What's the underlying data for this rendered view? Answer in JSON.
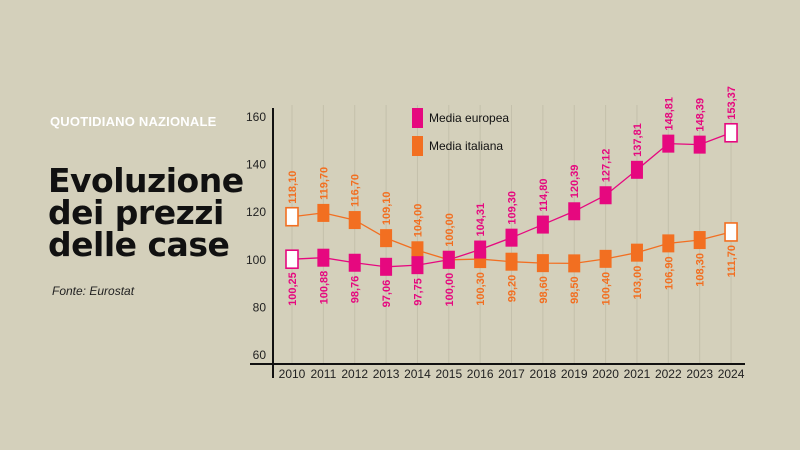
{
  "header": {
    "brand": "QUOTIDIANO NAZIONALE",
    "title_lines": [
      "Evoluzione",
      "dei prezzi",
      "delle case"
    ],
    "source": "Fonte:  Eurostat"
  },
  "colors": {
    "background": "#d4d0bb",
    "europe": "#e6087f",
    "italy": "#f26f21",
    "axis": "#111111",
    "gridline": "#c4c0ab"
  },
  "legend": [
    {
      "label": "Media europea",
      "color": "#e6087f"
    },
    {
      "label": "Media italiana",
      "color": "#f26f21"
    }
  ],
  "chart_data": {
    "type": "line",
    "title": "Evoluzione dei prezzi delle case",
    "source": "Eurostat",
    "xlabel": "",
    "ylabel": "",
    "ylim": [
      60,
      160
    ],
    "yticks": [
      60,
      80,
      100,
      120,
      140,
      160
    ],
    "grid": "vertical",
    "legend_position": "top-inside",
    "categories": [
      "2010",
      "2011",
      "2012",
      "2013",
      "2014",
      "2015",
      "2016",
      "2017",
      "2018",
      "2019",
      "2020",
      "2021",
      "2022",
      "2023",
      "2024"
    ],
    "series": [
      {
        "name": "Media europea",
        "color": "#e6087f",
        "values": [
          100.25,
          100.88,
          98.76,
          97.06,
          97.75,
          100.0,
          104.31,
          109.3,
          114.8,
          120.39,
          127.12,
          137.81,
          148.81,
          148.39,
          153.37
        ],
        "labels": [
          "100,25",
          "100,88",
          "98,76",
          "97,06",
          "97,75",
          "100,00",
          "104,31",
          "109,30",
          "114,80",
          "120,39",
          "127,12",
          "137,81",
          "148,81",
          "148,39",
          "153,37"
        ]
      },
      {
        "name": "Media italiana",
        "color": "#f26f21",
        "values": [
          118.1,
          119.7,
          116.7,
          109.1,
          104.0,
          100.0,
          100.3,
          99.2,
          98.6,
          98.5,
          100.4,
          103.0,
          106.9,
          108.3,
          111.7
        ],
        "labels": [
          "118,10",
          "119,70",
          "116,70",
          "109,10",
          "104,00",
          "100,00",
          "100,30",
          "99,20",
          "98,60",
          "98,50",
          "100,40",
          "103,00",
          "106,90",
          "108,30",
          "111,70"
        ]
      }
    ]
  }
}
